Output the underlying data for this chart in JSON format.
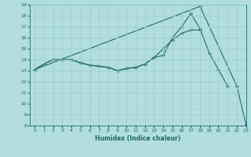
{
  "xlabel": "Humidex (Indice chaleur)",
  "bg_color": "#b2dede",
  "grid_color": "#9ecece",
  "line_color": "#1a6b6b",
  "xlim": [
    -0.5,
    23
  ],
  "ylim": [
    8,
    19
  ],
  "xticks": [
    0,
    1,
    2,
    3,
    4,
    5,
    6,
    7,
    8,
    9,
    10,
    11,
    12,
    13,
    14,
    15,
    16,
    17,
    18,
    19,
    20,
    21,
    22,
    23
  ],
  "yticks": [
    8,
    9,
    10,
    11,
    12,
    13,
    14,
    15,
    16,
    17,
    18,
    19
  ],
  "line1_y": [
    13.1,
    13.6,
    14.0,
    14.0,
    14.0,
    13.7,
    13.5,
    13.4,
    13.3,
    13.0,
    13.2,
    13.3,
    13.6,
    14.2,
    14.4,
    16.0,
    17.0,
    18.2,
    16.8,
    14.6,
    13.1,
    11.6,
    null,
    null
  ],
  "line2_y": [
    13.1,
    13.6,
    14.0,
    14.0,
    14.0,
    13.7,
    13.5,
    13.4,
    13.3,
    13.0,
    13.2,
    13.3,
    13.6,
    14.2,
    15.0,
    15.8,
    16.4,
    16.7,
    16.7,
    null,
    null,
    null,
    null,
    null
  ],
  "line3_y": [
    13.1,
    null,
    null,
    null,
    null,
    null,
    null,
    null,
    null,
    null,
    null,
    null,
    null,
    null,
    null,
    null,
    null,
    null,
    18.85,
    null,
    null,
    null,
    11.6,
    8.1
  ]
}
